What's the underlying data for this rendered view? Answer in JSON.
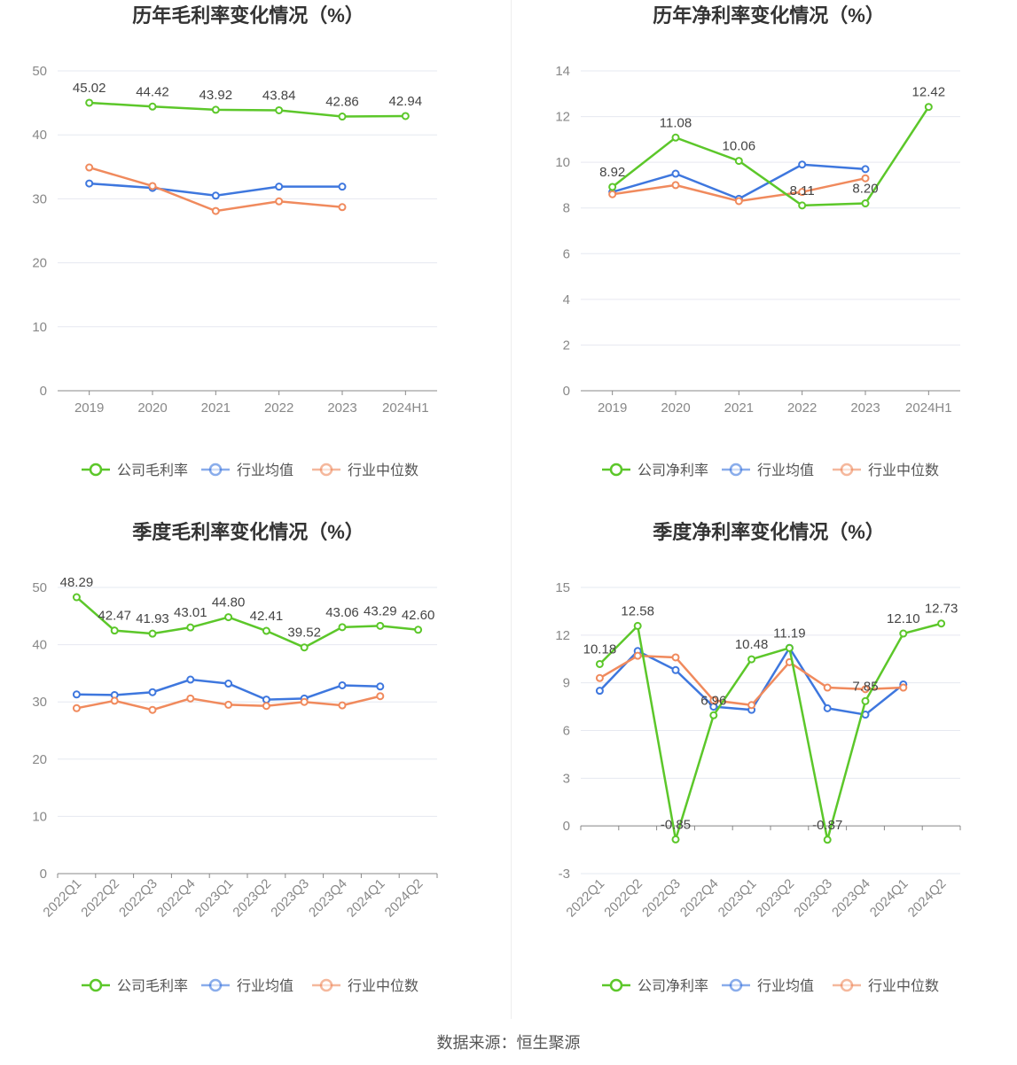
{
  "colors": {
    "company": "#5cc72a",
    "avg": "#3e77de",
    "median": "#f08a5d",
    "grid": "#e6e8f0",
    "axis": "#888888"
  },
  "legend_labels": {
    "avg": "行业均值",
    "median": "行业中位数"
  },
  "source_text": "数据来源：恒生聚源",
  "chart_data": [
    {
      "type": "line",
      "title": "历年毛利率变化情况（%）",
      "categories": [
        "2019",
        "2020",
        "2021",
        "2022",
        "2023",
        "2024H1"
      ],
      "ylim": [
        0,
        50
      ],
      "yticks": [
        0,
        10,
        20,
        30,
        40,
        50
      ],
      "rotate_x": false,
      "series": [
        {
          "name": "公司毛利率",
          "key": "company",
          "values": [
            45.02,
            44.42,
            43.92,
            43.84,
            42.86,
            42.94
          ],
          "labels": [
            "45.02",
            "44.42",
            "43.92",
            "43.84",
            "42.86",
            "42.94"
          ]
        },
        {
          "name": "行业均值",
          "key": "avg",
          "values": [
            32.4,
            31.7,
            30.5,
            31.9,
            31.9,
            null
          ]
        },
        {
          "name": "行业中位数",
          "key": "median",
          "values": [
            34.9,
            32.0,
            28.1,
            29.6,
            28.7,
            null
          ]
        }
      ]
    },
    {
      "type": "line",
      "title": "历年净利率变化情况（%）",
      "categories": [
        "2019",
        "2020",
        "2021",
        "2022",
        "2023",
        "2024H1"
      ],
      "ylim": [
        0,
        14
      ],
      "yticks": [
        0,
        2,
        4,
        6,
        8,
        10,
        12,
        14
      ],
      "rotate_x": false,
      "series": [
        {
          "name": "公司净利率",
          "key": "company",
          "values": [
            8.92,
            11.08,
            10.06,
            8.11,
            8.2,
            12.42
          ],
          "labels": [
            "8.92",
            "11.08",
            "10.06",
            "8.11",
            "8.20",
            "12.42"
          ]
        },
        {
          "name": "行业均值",
          "key": "avg",
          "values": [
            8.7,
            9.5,
            8.4,
            9.9,
            9.7,
            null
          ]
        },
        {
          "name": "行业中位数",
          "key": "median",
          "values": [
            8.6,
            9.0,
            8.3,
            8.7,
            9.3,
            null
          ]
        }
      ]
    },
    {
      "type": "line",
      "title": "季度毛利率变化情况（%）",
      "categories": [
        "2022Q1",
        "2022Q2",
        "2022Q3",
        "2022Q4",
        "2023Q1",
        "2023Q2",
        "2023Q3",
        "2023Q4",
        "2024Q1",
        "2024Q2"
      ],
      "ylim": [
        0,
        50
      ],
      "yticks": [
        0,
        10,
        20,
        30,
        40,
        50
      ],
      "rotate_x": true,
      "series": [
        {
          "name": "公司毛利率",
          "key": "company",
          "values": [
            48.29,
            42.47,
            41.93,
            43.01,
            44.8,
            42.41,
            39.52,
            43.06,
            43.29,
            42.6
          ],
          "labels": [
            "48.29",
            "42.47",
            "41.93",
            "43.01",
            "44.80",
            "42.41",
            "39.52",
            "43.06",
            "43.29",
            "42.60"
          ]
        },
        {
          "name": "行业均值",
          "key": "avg",
          "values": [
            31.3,
            31.2,
            31.7,
            33.9,
            33.2,
            30.4,
            30.6,
            32.9,
            32.7,
            null
          ]
        },
        {
          "name": "行业中位数",
          "key": "median",
          "values": [
            28.9,
            30.2,
            28.6,
            30.6,
            29.5,
            29.3,
            30.0,
            29.4,
            31.0,
            null
          ]
        }
      ]
    },
    {
      "type": "line",
      "title": "季度净利率变化情况（%）",
      "categories": [
        "2022Q1",
        "2022Q2",
        "2022Q3",
        "2022Q4",
        "2023Q1",
        "2023Q2",
        "2023Q3",
        "2023Q4",
        "2024Q1",
        "2024Q2"
      ],
      "ylim": [
        -3,
        15
      ],
      "yticks": [
        -3,
        0,
        3,
        6,
        9,
        12,
        15
      ],
      "rotate_x": true,
      "series": [
        {
          "name": "公司净利率",
          "key": "company",
          "values": [
            10.18,
            12.58,
            -0.85,
            6.96,
            10.48,
            11.19,
            -0.87,
            7.85,
            12.1,
            12.73
          ],
          "labels": [
            "10.18",
            "12.58",
            "-0.85",
            "6.96",
            "10.48",
            "11.19",
            "-0.87",
            "7.85",
            "12.10",
            "12.73"
          ]
        },
        {
          "name": "行业均值",
          "key": "avg",
          "values": [
            8.5,
            11.0,
            9.8,
            7.5,
            7.3,
            11.2,
            7.4,
            7.0,
            8.9,
            null
          ]
        },
        {
          "name": "行业中位数",
          "key": "median",
          "values": [
            9.3,
            10.7,
            10.6,
            7.9,
            7.6,
            10.3,
            8.7,
            8.6,
            8.7,
            null
          ]
        }
      ]
    }
  ]
}
